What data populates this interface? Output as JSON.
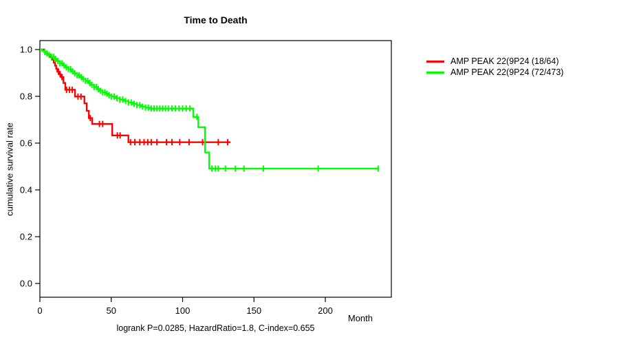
{
  "chart_data": {
    "type": "line",
    "subtype": "kaplan-meier-step",
    "title": "Time to Death",
    "xlabel": "Month",
    "ylabel": "cumulative survival rate",
    "caption": "logrank P=0.0285, HazardRatio=1.8, C-index=0.655",
    "xlim": [
      0,
      246
    ],
    "ylim": [
      0.0,
      1.0
    ],
    "xticks": [
      0,
      50,
      100,
      150,
      200
    ],
    "yticks": [
      0.0,
      0.2,
      0.4,
      0.6,
      0.8,
      1.0
    ],
    "grid": false,
    "legend_position": "right-outside-top",
    "series": [
      {
        "name": "AMP PEAK 22(9P24 (18/64)",
        "color": "#ff0000",
        "n": 64,
        "events": 18,
        "steps": [
          [
            0,
            1.0
          ],
          [
            3,
            0.99
          ],
          [
            5,
            0.979
          ],
          [
            7,
            0.968
          ],
          [
            8.5,
            0.957
          ],
          [
            9.7,
            0.944
          ],
          [
            10.6,
            0.931
          ],
          [
            11.4,
            0.918
          ],
          [
            12.2,
            0.906
          ],
          [
            13.5,
            0.894
          ],
          [
            14.8,
            0.882
          ],
          [
            16.5,
            0.857
          ],
          [
            17.8,
            0.828
          ],
          [
            24.6,
            0.799
          ],
          [
            31.2,
            0.77
          ],
          [
            32.8,
            0.738
          ],
          [
            34.3,
            0.707
          ],
          [
            36.6,
            0.682
          ],
          [
            50.7,
            0.633
          ],
          [
            62,
            0.604
          ]
        ],
        "end_month": 133.5,
        "censor_months": [
          13,
          14.2,
          15.5,
          18.7,
          20.7,
          22.7,
          26.7,
          28.8,
          35.3,
          41.7,
          44,
          54.3,
          56.2,
          63.5,
          66.5,
          70,
          73,
          75.6,
          78,
          82,
          88.7,
          92.5,
          98,
          104.6,
          114,
          125,
          131.6
        ]
      },
      {
        "name": "AMP PEAK 22(9P24 (72/473)",
        "color": "#00ff00",
        "n": 473,
        "events": 72,
        "steps": [
          [
            0,
            1.0
          ],
          [
            1.5,
            0.995
          ],
          [
            3,
            0.989
          ],
          [
            4.5,
            0.983
          ],
          [
            6,
            0.977
          ],
          [
            8,
            0.969
          ],
          [
            10,
            0.96
          ],
          [
            12,
            0.951
          ],
          [
            14,
            0.941
          ],
          [
            16,
            0.932
          ],
          [
            18,
            0.924
          ],
          [
            20,
            0.916
          ],
          [
            22,
            0.907
          ],
          [
            24,
            0.898
          ],
          [
            26,
            0.89
          ],
          [
            28,
            0.882
          ],
          [
            30,
            0.874
          ],
          [
            32,
            0.866
          ],
          [
            34,
            0.857
          ],
          [
            36,
            0.849
          ],
          [
            38,
            0.84
          ],
          [
            40,
            0.831
          ],
          [
            42,
            0.824
          ],
          [
            44,
            0.817
          ],
          [
            46,
            0.811
          ],
          [
            48,
            0.805
          ],
          [
            50,
            0.799
          ],
          [
            53,
            0.792
          ],
          [
            56,
            0.786
          ],
          [
            59,
            0.78
          ],
          [
            62,
            0.774
          ],
          [
            65,
            0.768
          ],
          [
            68,
            0.762
          ],
          [
            71,
            0.756
          ],
          [
            74,
            0.752
          ],
          [
            77,
            0.748
          ],
          [
            107.5,
            0.712
          ],
          [
            111,
            0.668
          ],
          [
            115.7,
            0.56
          ],
          [
            118.6,
            0.491
          ]
        ],
        "end_month": 237.5,
        "censor_months": [
          3.5,
          5,
          6.5,
          8,
          9.5,
          11,
          12.5,
          14,
          15.5,
          17,
          18.5,
          20,
          21.5,
          23,
          24.5,
          26,
          27.5,
          29,
          30.5,
          32,
          33.5,
          35,
          36.5,
          38,
          39.5,
          41,
          42.5,
          44,
          45.5,
          47,
          48.5,
          50,
          52,
          54,
          56,
          58,
          60,
          62,
          64,
          66,
          68,
          70,
          72,
          74,
          76,
          78,
          80,
          82,
          84,
          86,
          88,
          90,
          92.5,
          95,
          97.5,
          100,
          102.5,
          105,
          110,
          120.5,
          123,
          125,
          130,
          137,
          143,
          156.6,
          195,
          237
        ]
      }
    ],
    "colors": {
      "axis": "#000000",
      "background": "#ffffff",
      "series_red": "#ff0000",
      "series_green": "#00ff00"
    }
  }
}
